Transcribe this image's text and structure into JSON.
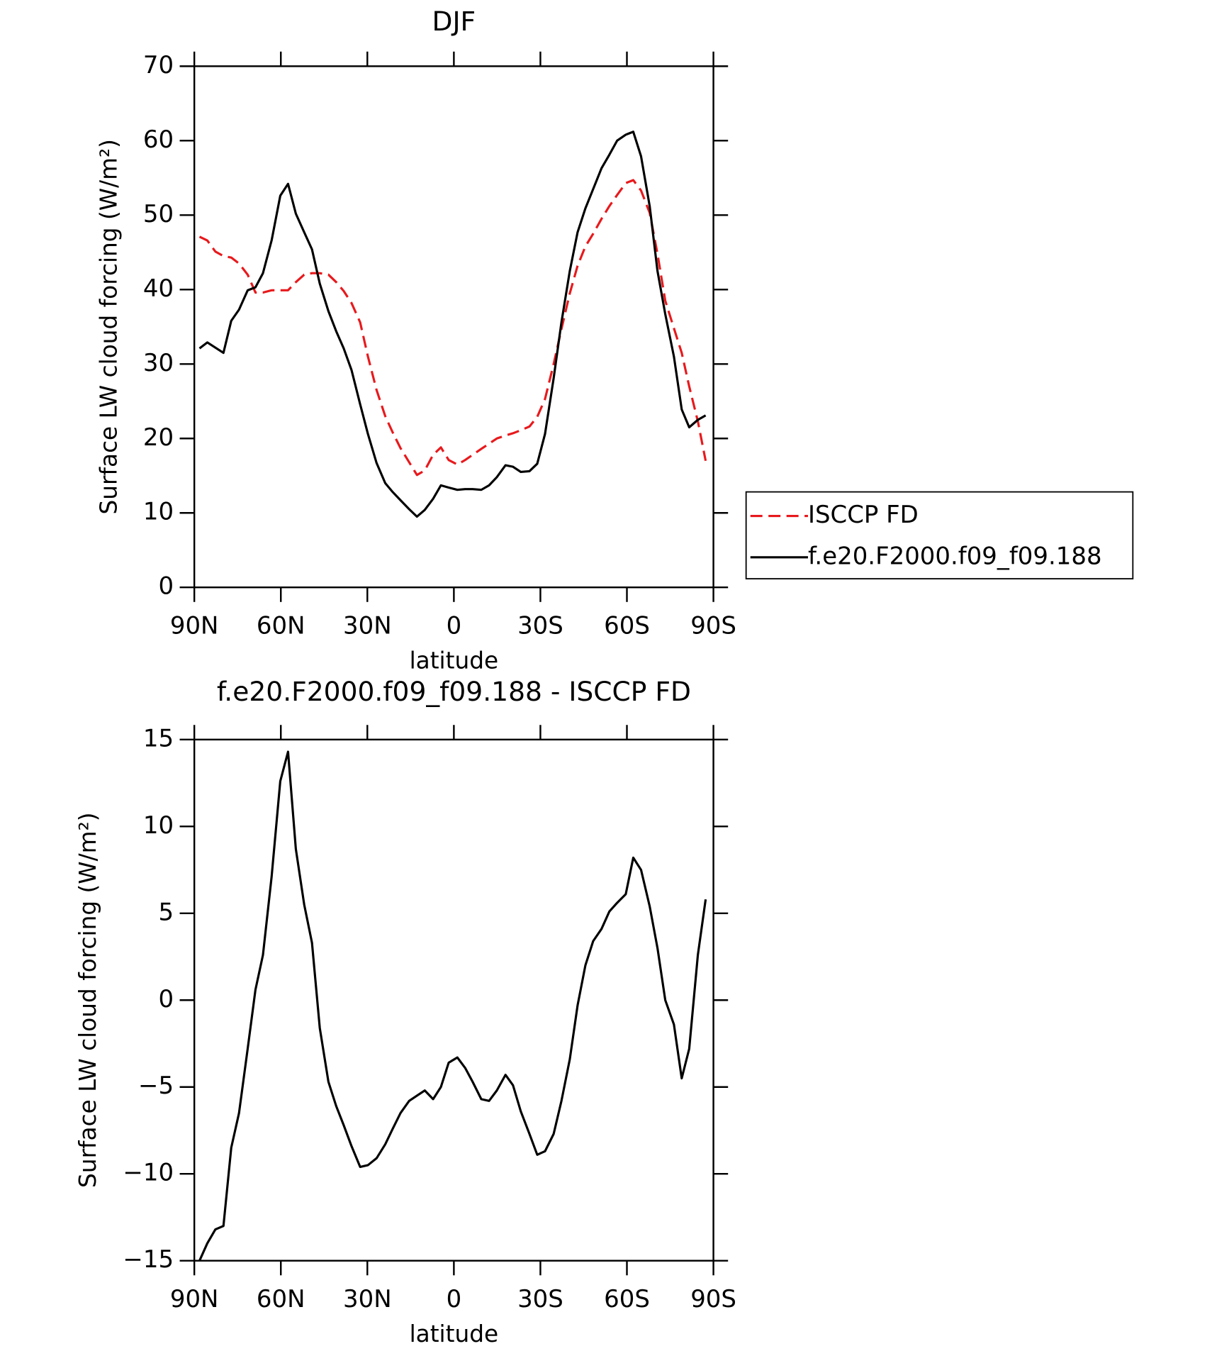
{
  "chart_data": [
    {
      "type": "line",
      "title": "DJF",
      "xlabel": "latitude",
      "ylabel": "Surface LW cloud forcing (W/m²)",
      "xlim": [
        90,
        -90
      ],
      "xticks": [
        {
          "value": 90,
          "label": "90N"
        },
        {
          "value": 60,
          "label": "60N"
        },
        {
          "value": 30,
          "label": "30N"
        },
        0,
        {
          "value": -30,
          "label": "30S"
        },
        {
          "value": -60,
          "label": "60S"
        },
        {
          "value": -90,
          "label": "90S"
        }
      ],
      "ylim": [
        0,
        70
      ],
      "yticks": [
        0,
        10,
        20,
        30,
        40,
        50,
        60,
        70
      ],
      "legend": "right",
      "x": [
        88.2,
        85.5,
        82.7,
        79.9,
        77.2,
        74.5,
        71.5,
        68.8,
        66.2,
        63.2,
        60.2,
        57.5,
        54.8,
        51.9,
        49.2,
        46.5,
        43.5,
        40.8,
        38.2,
        35.5,
        32.5,
        29.8,
        26.8,
        23.8,
        21.2,
        18.5,
        15.5,
        12.8,
        10.1,
        7.2,
        4.5,
        1.8,
        -1.2,
        -3.9,
        -6.5,
        -9.5,
        -12.2,
        -14.9,
        -17.9,
        -20.5,
        -23.2,
        -26.2,
        -28.9,
        -31.6,
        -34.6,
        -37.3,
        -40.2,
        -42.9,
        -45.6,
        -48.3,
        -51.2,
        -53.9,
        -56.6,
        -59.6,
        -62.2,
        -64.9,
        -67.9,
        -70.6,
        -73.3,
        -76.3,
        -79.0,
        -81.6,
        -84.6,
        -87.3
      ],
      "series": [
        {
          "name": "ISCCP FD",
          "color": "#e8191c",
          "style": "dashed",
          "values": [
            47.1,
            46.6,
            45.1,
            44.5,
            44.3,
            43.5,
            42.0,
            39.6,
            39.6,
            39.9,
            39.9,
            39.9,
            41.0,
            42.0,
            42.2,
            42.2,
            42.0,
            41.0,
            39.8,
            38.2,
            35.6,
            31.0,
            26.5,
            23.0,
            20.8,
            18.7,
            16.8,
            15.1,
            15.7,
            17.8,
            18.8,
            17.1,
            16.5,
            17.1,
            17.8,
            18.6,
            19.3,
            20.0,
            20.4,
            20.7,
            21.1,
            21.6,
            22.9,
            25.3,
            30.0,
            34.7,
            39.5,
            43.2,
            45.8,
            47.5,
            49.5,
            51.2,
            52.7,
            54.3,
            54.7,
            53.3,
            50.3,
            44.8,
            38.5,
            34.8,
            31.5,
            27.0,
            22.3,
            17.0
          ]
        },
        {
          "name": "f.e20.F2000.f09_f09.188",
          "color": "#000000",
          "style": "solid",
          "values": [
            32.1,
            32.9,
            32.2,
            31.5,
            35.8,
            37.3,
            39.9,
            40.3,
            42.2,
            46.6,
            52.6,
            54.2,
            50.2,
            47.7,
            45.4,
            40.8,
            37.1,
            34.4,
            32.1,
            29.2,
            24.6,
            20.6,
            16.7,
            14.0,
            12.8,
            11.7,
            10.5,
            9.5,
            10.4,
            11.9,
            13.7,
            13.4,
            13.1,
            13.2,
            13.2,
            13.1,
            13.7,
            14.8,
            16.4,
            16.2,
            15.5,
            15.6,
            16.6,
            20.6,
            28.1,
            35.6,
            42.5,
            47.7,
            50.9,
            53.5,
            56.3,
            58.1,
            60.0,
            60.8,
            61.2,
            57.9,
            51.2,
            42.5,
            36.7,
            31.0,
            23.9,
            21.5,
            22.5,
            23.1
          ]
        }
      ]
    },
    {
      "type": "line",
      "title": "f.e20.F2000.f09_f09.188 - ISCCP FD",
      "xlabel": "latitude",
      "ylabel": "Surface LW cloud forcing (W/m²)",
      "xlim": [
        90,
        -90
      ],
      "xticks": [
        {
          "value": 90,
          "label": "90N"
        },
        {
          "value": 60,
          "label": "60N"
        },
        {
          "value": 30,
          "label": "30N"
        },
        0,
        {
          "value": -30,
          "label": "30S"
        },
        {
          "value": -60,
          "label": "60S"
        },
        {
          "value": -90,
          "label": "90S"
        }
      ],
      "ylim": [
        -15,
        15
      ],
      "yticks": [
        {
          "value": -15,
          "label": "−15"
        },
        {
          "value": -10,
          "label": "−10"
        },
        {
          "value": -5,
          "label": "−5"
        },
        0,
        5,
        10,
        15
      ],
      "x": [
        88.2,
        85.5,
        82.7,
        79.9,
        77.2,
        74.5,
        71.5,
        68.8,
        66.2,
        63.2,
        60.2,
        57.5,
        54.8,
        51.9,
        49.2,
        46.5,
        43.5,
        40.8,
        38.2,
        35.5,
        32.5,
        29.8,
        26.8,
        23.8,
        21.2,
        18.5,
        15.5,
        12.8,
        10.1,
        7.2,
        4.5,
        1.8,
        -1.2,
        -3.9,
        -6.5,
        -9.5,
        -12.2,
        -14.9,
        -17.9,
        -20.5,
        -23.2,
        -26.2,
        -28.9,
        -31.6,
        -34.6,
        -37.3,
        -40.2,
        -42.9,
        -45.6,
        -48.3,
        -51.2,
        -53.9,
        -56.6,
        -59.6,
        -62.2,
        -64.9,
        -67.9,
        -70.6,
        -73.3,
        -76.3,
        -79.0,
        -81.6,
        -84.6,
        -87.3
      ],
      "series": [
        {
          "color": "#000000",
          "style": "solid",
          "values": [
            -15.0,
            -14.0,
            -13.2,
            -13.0,
            -8.5,
            -6.5,
            -2.8,
            0.6,
            2.6,
            7.1,
            12.6,
            14.3,
            8.7,
            5.5,
            3.3,
            -1.6,
            -4.7,
            -6.1,
            -7.2,
            -8.4,
            -9.6,
            -9.5,
            -9.1,
            -8.3,
            -7.4,
            -6.5,
            -5.8,
            -5.5,
            -5.2,
            -5.7,
            -5.0,
            -3.6,
            -3.3,
            -3.9,
            -4.7,
            -5.7,
            -5.8,
            -5.2,
            -4.3,
            -4.9,
            -6.4,
            -7.7,
            -8.9,
            -8.7,
            -7.7,
            -5.8,
            -3.4,
            -0.3,
            2.0,
            3.4,
            4.1,
            5.1,
            5.6,
            6.1,
            8.2,
            7.5,
            5.4,
            3.0,
            0.0,
            -1.4,
            -4.5,
            -2.8,
            2.6,
            5.8
          ]
        }
      ]
    }
  ]
}
